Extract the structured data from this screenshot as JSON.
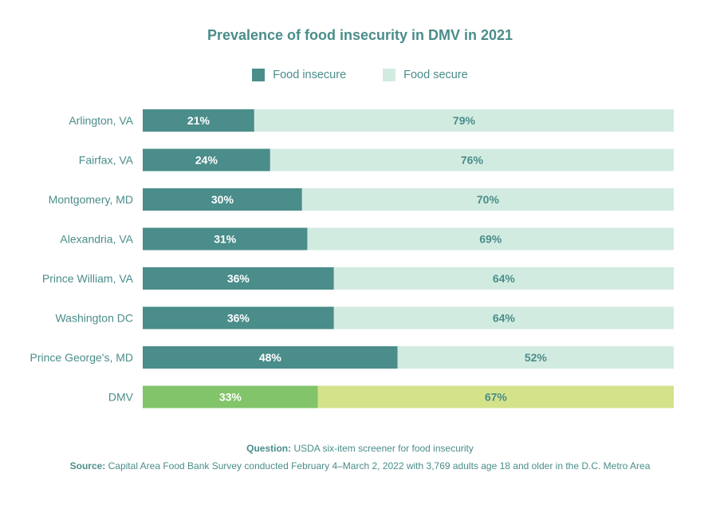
{
  "chart_data": {
    "type": "bar",
    "orientation": "horizontal",
    "stacked": true,
    "title": "Prevalence of food insecurity in DMV in 2021",
    "categories": [
      "Arlington, VA",
      "Fairfax, VA",
      "Montgomery, MD",
      "Alexandria, VA",
      "Prince William, VA",
      "Washington DC",
      "Prince George's, MD",
      "DMV"
    ],
    "series": [
      {
        "name": "Food insecure",
        "values": [
          21,
          24,
          30,
          31,
          36,
          36,
          48,
          33
        ],
        "color": "#4a8d8a",
        "highlight_color": "#82c46a",
        "label_color": "#ffffff"
      },
      {
        "name": "Food secure",
        "values": [
          79,
          76,
          70,
          69,
          64,
          64,
          52,
          67
        ],
        "color": "#d2ebe0",
        "highlight_color": "#d4e38a",
        "label_color": "#4a8d8a"
      }
    ],
    "highlight_category": "DMV",
    "value_suffix": "%",
    "xlim": [
      0,
      100
    ],
    "legend": "top-center",
    "grid": false,
    "xlabel": "",
    "ylabel": ""
  },
  "legend": {
    "items": [
      {
        "label": "Food insecure",
        "color": "#4a8d8a"
      },
      {
        "label": "Food secure",
        "color": "#d2ebe0"
      }
    ]
  },
  "footer": {
    "question_label": "Question:",
    "question_text": " USDA six-item screener for food insecurity",
    "source_label": "Source:",
    "source_text": " Capital Area Food Bank Survey conducted February 4–March 2, 2022 with 3,769 adults age 18 and older in the D.C. Metro Area"
  }
}
